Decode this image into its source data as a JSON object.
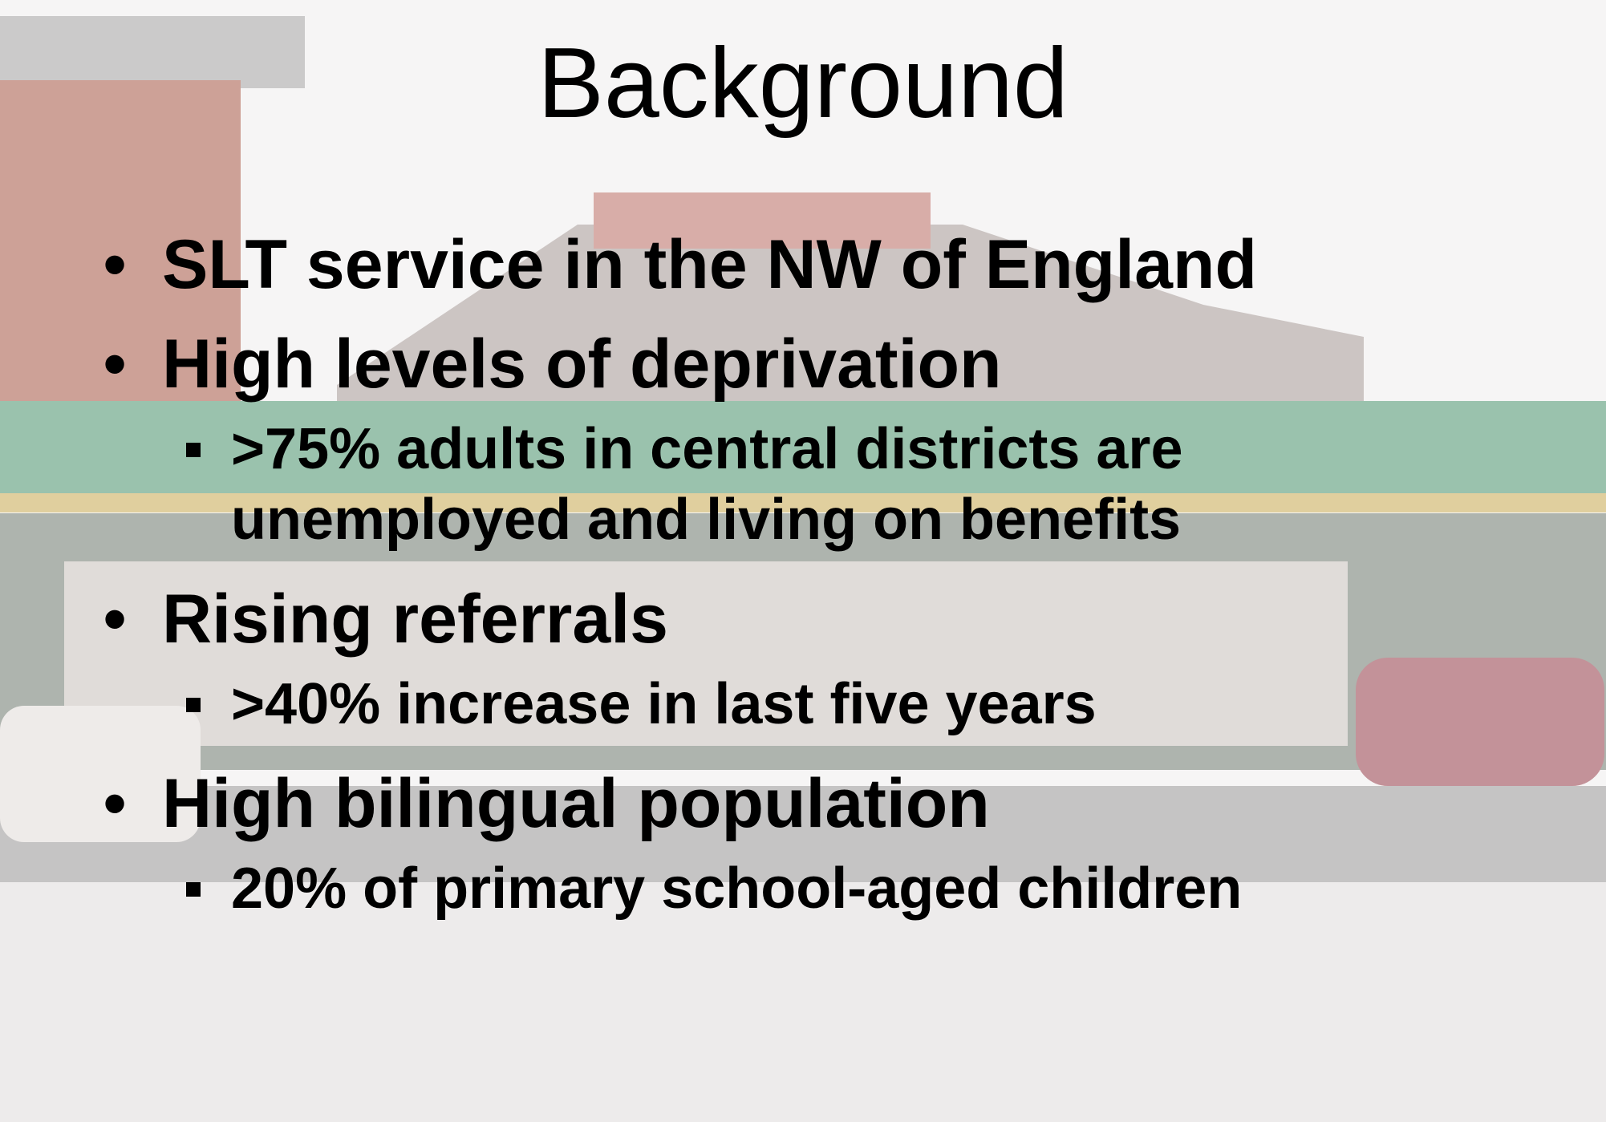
{
  "title": "Background",
  "bullets": [
    {
      "text": "SLT service in the NW of England",
      "items": []
    },
    {
      "text": "High levels of deprivation",
      "items": [
        ">75% adults in central districts are unemployed and living on benefits"
      ]
    },
    {
      "text": "Rising referrals",
      "items": [
        ">40% increase in last five years"
      ]
    },
    {
      "text": "High bilingual population",
      "items": [
        "20% of primary school-aged children"
      ]
    }
  ]
}
